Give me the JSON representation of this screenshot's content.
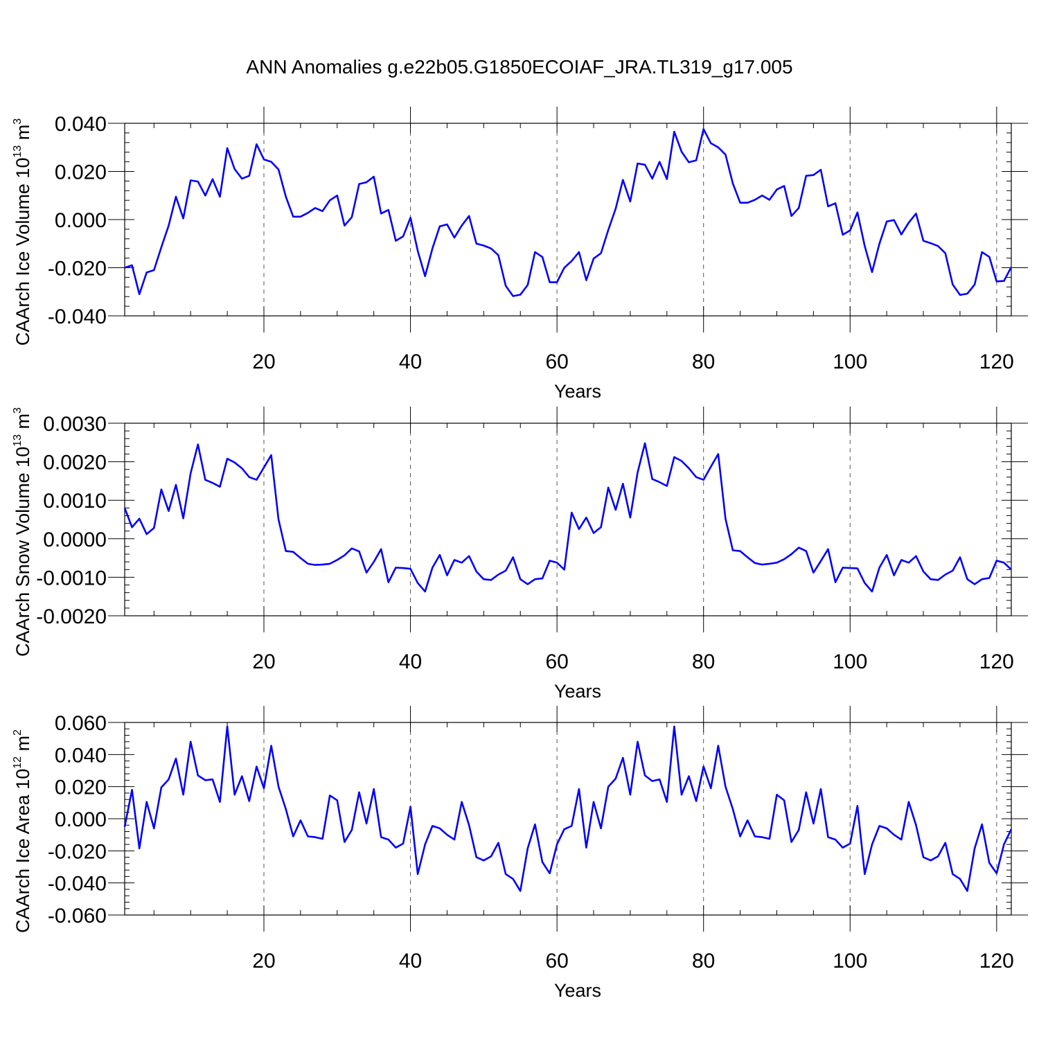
{
  "title": "ANN Anomalies g.e22b05.G1850ECOIAF_JRA.TL319_g17.005",
  "colors": {
    "line": "#0000ff",
    "frame": "#000000",
    "grid": "#555555"
  },
  "chart_data": [
    {
      "type": "line",
      "ylabel": "CAArch Ice Volume 10",
      "ylabel_sup": "13",
      "ylabel_unit": "m",
      "ylabel_unit_sup": "3",
      "xlabel": "Years",
      "xlim": [
        1,
        122
      ],
      "ylim": [
        -0.04,
        0.04
      ],
      "xticks": [
        20,
        40,
        60,
        80,
        100,
        120
      ],
      "xtick_labels": [
        "20",
        "40",
        "60",
        "80",
        "100",
        "120"
      ],
      "yticks": [
        -0.04,
        -0.02,
        0.0,
        0.02,
        0.04
      ],
      "ytick_labels": [
        "-0.040",
        "-0.020",
        "0.000",
        "0.020",
        "0.040"
      ],
      "grid": "vertical dashed at major x ticks",
      "series": [
        {
          "name": "CAArch Ice Volume",
          "values": [
            -0.02,
            -0.019,
            -0.031,
            -0.022,
            -0.021,
            -0.0115,
            -0.0025,
            0.0095,
            0.0005,
            0.0163,
            0.0158,
            0.01,
            0.0168,
            0.0095,
            0.0297,
            0.021,
            0.017,
            0.0182,
            0.0313,
            0.025,
            0.024,
            0.0208,
            0.0095,
            0.0012,
            0.0012,
            0.0028,
            0.0048,
            0.0035,
            0.008,
            0.01,
            -0.0025,
            0.001,
            0.0148,
            0.0155,
            0.0178,
            0.0025,
            0.004,
            -0.0088,
            -0.007,
            0.0008,
            -0.013,
            -0.0235,
            -0.012,
            -0.0028,
            -0.002,
            -0.0075,
            -0.0025,
            0.0015,
            -0.01,
            -0.0108,
            -0.012,
            -0.0148,
            -0.0275,
            -0.0318,
            -0.0312,
            -0.0272,
            -0.0135,
            -0.0155,
            -0.026,
            -0.026,
            -0.02,
            -0.0172,
            -0.0135,
            -0.0252,
            -0.0162,
            -0.014,
            -0.0043,
            0.0045,
            0.0165,
            0.0075,
            0.0233,
            0.0228,
            0.017,
            0.024,
            0.0168,
            0.0365,
            0.0282,
            0.0238,
            0.0246,
            0.0376,
            0.0317,
            0.03,
            0.027,
            0.015,
            0.007,
            0.007,
            0.0082,
            0.01,
            0.0082,
            0.0125,
            0.014,
            0.0015,
            0.0048,
            0.0182,
            0.0185,
            0.0207,
            0.0055,
            0.0068,
            -0.0063,
            -0.0045,
            0.003,
            -0.011,
            -0.0218,
            -0.01,
            -0.0008,
            -0.0002,
            -0.0062,
            -0.0013,
            0.0025,
            -0.0088,
            -0.0098,
            -0.011,
            -0.014,
            -0.027,
            -0.0313,
            -0.0308,
            -0.027,
            -0.0135,
            -0.0155,
            -0.0257,
            -0.0255,
            -0.0197
          ]
        }
      ]
    },
    {
      "type": "line",
      "ylabel": "CAArch Snow Volume 10",
      "ylabel_sup": "13",
      "ylabel_unit": "m",
      "ylabel_unit_sup": "3",
      "xlabel": "Years",
      "xlim": [
        1,
        122
      ],
      "ylim": [
        -0.002,
        0.003
      ],
      "xticks": [
        20,
        40,
        60,
        80,
        100,
        120
      ],
      "xtick_labels": [
        "20",
        "40",
        "60",
        "80",
        "100",
        "120"
      ],
      "yticks": [
        -0.002,
        -0.001,
        0.0,
        0.001,
        0.002,
        0.003
      ],
      "ytick_labels": [
        "-0.0020",
        "-0.0010",
        "0.0000",
        "0.0010",
        "0.0020",
        "0.0030"
      ],
      "grid": "vertical dashed at major x ticks",
      "series": [
        {
          "name": "CAArch Snow Volume",
          "values": [
            0.0008,
            0.0003,
            0.00052,
            0.00012,
            0.00028,
            0.00128,
            0.00072,
            0.0014,
            0.00053,
            0.0017,
            0.00245,
            0.00153,
            0.00145,
            0.00135,
            0.00208,
            0.00198,
            0.00183,
            0.0016,
            0.00153,
            0.00185,
            0.00217,
            0.0005,
            -0.00032,
            -0.00034,
            -0.0005,
            -0.00065,
            -0.00068,
            -0.00067,
            -0.00065,
            -0.00055,
            -0.00043,
            -0.00025,
            -0.00033,
            -0.00088,
            -0.0006,
            -0.00027,
            -0.00113,
            -0.00075,
            -0.00076,
            -0.00078,
            -0.00115,
            -0.00137,
            -0.00075,
            -0.00042,
            -0.00095,
            -0.00055,
            -0.00062,
            -0.00045,
            -0.00085,
            -0.00105,
            -0.00107,
            -0.00093,
            -0.00083,
            -0.00048,
            -0.00105,
            -0.00118,
            -0.00105,
            -0.00103,
            -0.00057,
            -0.00062,
            -0.0008,
            0.00068,
            0.00025,
            0.00055,
            0.00015,
            0.0003,
            0.00133,
            0.00075,
            0.00143,
            0.00055,
            0.00172,
            0.00248,
            0.00155,
            0.00147,
            0.00137,
            0.00212,
            0.00202,
            0.00183,
            0.0016,
            0.00153,
            0.00187,
            0.0022,
            0.00052,
            -0.0003,
            -0.00032,
            -0.00048,
            -0.00063,
            -0.00067,
            -0.00065,
            -0.00062,
            -0.00053,
            -0.0004,
            -0.00023,
            -0.00032,
            -0.00088,
            -0.00058,
            -0.00027,
            -0.00113,
            -0.00075,
            -0.00076,
            -0.00077,
            -0.00115,
            -0.00137,
            -0.00075,
            -0.00042,
            -0.00095,
            -0.00055,
            -0.00062,
            -0.00045,
            -0.00085,
            -0.00105,
            -0.00107,
            -0.00093,
            -0.00083,
            -0.00048,
            -0.00105,
            -0.00118,
            -0.00105,
            -0.00102,
            -0.00057,
            -0.00062,
            -0.0008
          ]
        }
      ]
    },
    {
      "type": "line",
      "ylabel": "CAArch Ice Area 10",
      "ylabel_sup": "12",
      "ylabel_unit": "m",
      "ylabel_unit_sup": "2",
      "xlabel": "Years",
      "xlim": [
        1,
        122
      ],
      "ylim": [
        -0.06,
        0.06
      ],
      "xticks": [
        20,
        40,
        60,
        80,
        100,
        120
      ],
      "xtick_labels": [
        "20",
        "40",
        "60",
        "80",
        "100",
        "120"
      ],
      "yticks": [
        -0.06,
        -0.04,
        -0.02,
        0.0,
        0.02,
        0.04,
        0.06
      ],
      "ytick_labels": [
        "-0.060",
        "-0.040",
        "-0.020",
        "0.000",
        "0.020",
        "0.040",
        "0.060"
      ],
      "grid": "vertical dashed at major x ticks",
      "series": [
        {
          "name": "CAArch Ice Area",
          "values": [
            -0.005,
            0.018,
            -0.0185,
            0.0105,
            -0.006,
            0.0195,
            0.0245,
            0.0375,
            0.015,
            0.048,
            0.027,
            0.024,
            0.0245,
            0.0105,
            0.0575,
            0.015,
            0.0265,
            0.011,
            0.0325,
            0.019,
            0.0455,
            0.02,
            0.006,
            -0.011,
            -0.001,
            -0.011,
            -0.0115,
            -0.0125,
            0.0145,
            0.0115,
            -0.0145,
            -0.007,
            0.0165,
            -0.003,
            0.0185,
            -0.0115,
            -0.013,
            -0.018,
            -0.0155,
            0.0075,
            -0.0345,
            -0.016,
            -0.0045,
            -0.006,
            -0.01,
            -0.013,
            0.0105,
            -0.004,
            -0.024,
            -0.026,
            -0.0235,
            -0.015,
            -0.0345,
            -0.0375,
            -0.045,
            -0.0185,
            -0.0035,
            -0.027,
            -0.034,
            -0.016,
            -0.0065,
            -0.0045,
            0.0185,
            -0.018,
            0.0105,
            -0.006,
            0.02,
            0.025,
            0.038,
            0.015,
            0.048,
            0.027,
            0.0235,
            0.0245,
            0.0105,
            0.0575,
            0.015,
            0.0265,
            0.011,
            0.0325,
            0.019,
            0.0455,
            0.02,
            0.006,
            -0.011,
            -0.001,
            -0.011,
            -0.0115,
            -0.0125,
            0.015,
            0.0115,
            -0.0145,
            -0.007,
            0.0165,
            -0.003,
            0.0185,
            -0.0115,
            -0.013,
            -0.018,
            -0.0155,
            0.008,
            -0.0345,
            -0.016,
            -0.0045,
            -0.006,
            -0.01,
            -0.013,
            0.0105,
            -0.004,
            -0.024,
            -0.026,
            -0.0235,
            -0.015,
            -0.0345,
            -0.0375,
            -0.045,
            -0.0185,
            -0.0035,
            -0.0275,
            -0.034,
            -0.016,
            -0.0065
          ]
        }
      ]
    }
  ]
}
